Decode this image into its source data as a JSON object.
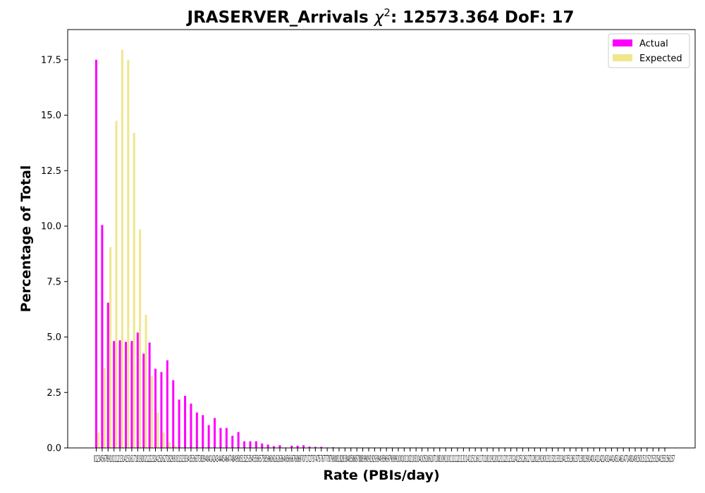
{
  "chart_data": {
    "type": "bar",
    "title": "JRASERVER_Arrivals χ²: 12573.364 DoF: 17",
    "title_main": "JRASERVER_Arrivals ",
    "title_chi": "χ",
    "title_sup": "2",
    "title_rest": ": 12573.364 DoF: 17",
    "xlabel": "Rate (PBIs/day)",
    "ylabel": "Percentage of Total",
    "ylim": [
      0,
      18.86
    ],
    "yticks": [
      "0.0",
      "2.5",
      "5.0",
      "7.5",
      "10.0",
      "12.5",
      "15.0",
      "17.5"
    ],
    "ytick_values": [
      0,
      2.5,
      5,
      7.5,
      10,
      12.5,
      15,
      17.5
    ],
    "xtick_text": "0123456789101112131415161718192021222324252627282930313233343536373839404142434445464748495051525354555657585960616263646566676869707172737475767778798081828384858687888990919293949596979899100101102103104105106107108109110111112113114115116117118119120121122123124125126127128129130131132133134135136137138139140141142143144145146147148149150151152153154155156157",
    "legend": [
      "Actual",
      "Expected"
    ],
    "legend_location": "top-right",
    "colors": {
      "actual": "#ff00ff",
      "expected": "#f0e68c"
    },
    "series": [
      {
        "name": "Actual",
        "values": [
          17.5,
          10.05,
          6.55,
          4.82,
          4.85,
          4.78,
          4.82,
          5.2,
          4.25,
          4.75,
          3.57,
          3.42,
          3.95,
          3.05,
          2.18,
          2.35,
          2.0,
          1.6,
          1.48,
          1.03,
          1.35,
          0.9,
          0.9,
          0.55,
          0.72,
          0.3,
          0.3,
          0.3,
          0.2,
          0.15,
          0.08,
          0.12,
          0.02,
          0.1,
          0.1,
          0.12,
          0.06,
          0.05,
          0.05,
          0.02,
          0.03,
          0.02,
          0.01,
          0.02,
          0.01,
          0.01,
          0.01,
          0.01,
          0.02,
          0.01,
          0.01,
          0.01,
          0.01,
          0.01,
          0.02,
          0.01,
          0.01,
          0.01,
          0.01,
          0.01,
          0.01,
          0.01,
          0.01,
          0.01,
          0.01,
          0.01,
          0.01,
          0.01,
          0.01,
          0.01,
          0.01,
          0.01,
          0.01,
          0.01,
          0.01,
          0.01,
          0.01,
          0.01,
          0.01,
          0.01,
          0.01,
          0.01,
          0.01,
          0.01,
          0.01,
          0.01,
          0.01,
          0.01,
          0.01,
          0.01,
          0.01,
          0.01,
          0.01,
          0.01,
          0.01,
          0.01,
          0.01
        ]
      },
      {
        "name": "Expected",
        "values": [
          0.7,
          3.6,
          9.05,
          14.75,
          17.95,
          17.5,
          14.2,
          9.85,
          6.0,
          3.25,
          1.6,
          0.7,
          0.25,
          0.1,
          0.03,
          0.01,
          0,
          0,
          0,
          0,
          0,
          0,
          0,
          0,
          0,
          0,
          0,
          0,
          0,
          0,
          0,
          0,
          0,
          0,
          0,
          0,
          0,
          0,
          0,
          0,
          0,
          0,
          0,
          0,
          0,
          0,
          0,
          0,
          0,
          0,
          0,
          0,
          0,
          0,
          0,
          0,
          0,
          0,
          0,
          0,
          0,
          0,
          0,
          0,
          0,
          0,
          0,
          0,
          0,
          0,
          0,
          0,
          0,
          0,
          0,
          0,
          0,
          0,
          0,
          0,
          0,
          0,
          0,
          0,
          0,
          0,
          0,
          0,
          0,
          0,
          0,
          0,
          0,
          0,
          0,
          0,
          0
        ]
      }
    ]
  }
}
